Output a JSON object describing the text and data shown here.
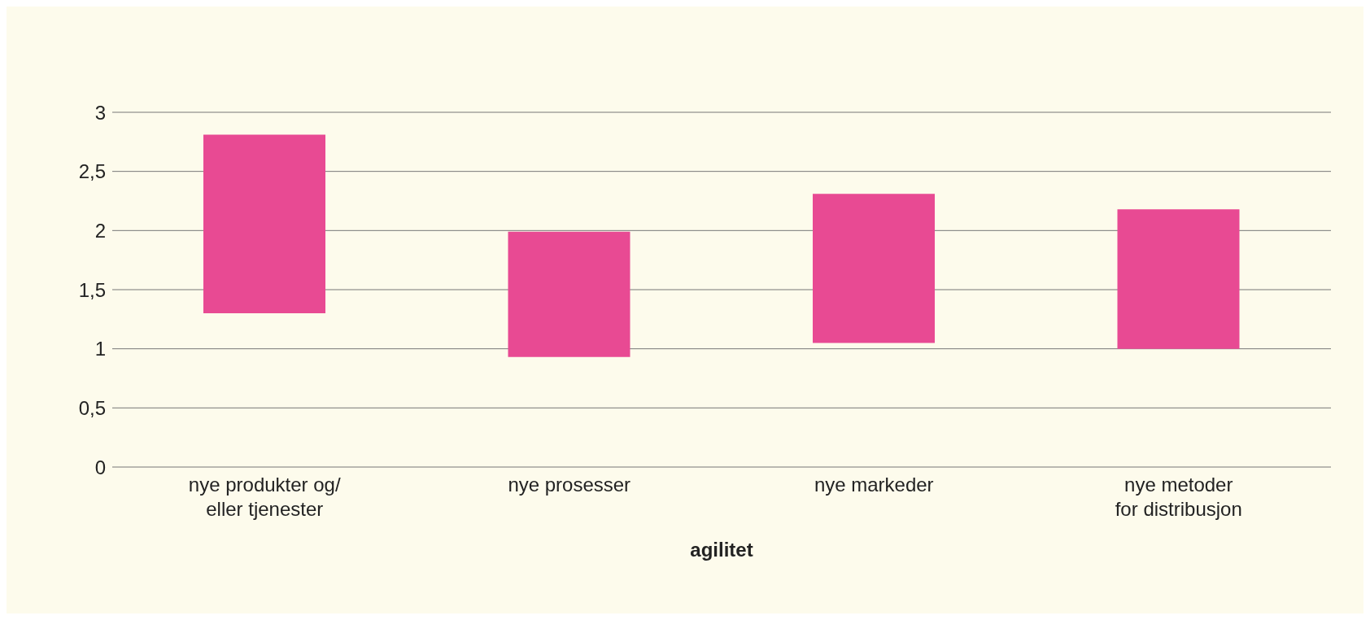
{
  "chart_data": {
    "type": "bar",
    "xlabel": "agilitet",
    "categories": [
      "nye produkter og/\neller tjenester",
      "nye prosesser",
      "nye markeder",
      "nye metoder\nfor distribusjon"
    ],
    "base": [
      1.3,
      0.93,
      1.05,
      1.0
    ],
    "values": [
      1.51,
      1.06,
      1.26,
      1.18
    ],
    "color": "#e84a93",
    "ylim": [
      0,
      3
    ],
    "yticks": [
      0,
      {
        "value": 0.5,
        "label": "0,5"
      },
      1,
      {
        "value": 1.5,
        "label": "1,5"
      },
      2,
      {
        "value": 2.5,
        "label": "2,5"
      },
      3
    ],
    "grid": "y",
    "legend": false
  }
}
